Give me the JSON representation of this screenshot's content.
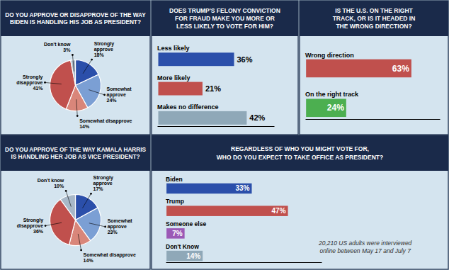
{
  "chart_data": [
    {
      "type": "pie",
      "title": "DO YOU APPROVE OR DISAPPROVE OF THE WAY\nBIDEN IS HANDLING HIS JOB AS PRESIDENT?",
      "categories": [
        "Strongly\napprove",
        "Somewhat\napprove",
        "Somewhat disapprove",
        "Strongly\ndisapprove",
        "Don't know"
      ],
      "values": [
        18,
        24,
        14,
        41,
        3
      ],
      "value_labels": [
        "18%",
        "24%",
        "14%",
        "41%",
        "3%"
      ],
      "colors": [
        "#2b4faa",
        "#7b9fd4",
        "#d9867a",
        "#c0504d",
        "#a8b8c8"
      ],
      "data_labels": true
    },
    {
      "type": "pie",
      "title": "DO YOU APPROVE OF THE WAY KAMALA HARRIS\nIS HANDLING HER JOB AS VICE PRESIDENT?",
      "categories": [
        "Strongly\napprove",
        "Somewhat\napprove",
        "Somewhat disapprove",
        "Strongly\ndisapprove",
        "Don't know"
      ],
      "values": [
        17,
        23,
        14,
        36,
        10
      ],
      "value_labels": [
        "17%",
        "23%",
        "14%",
        "36%",
        "10%"
      ],
      "colors": [
        "#2b4faa",
        "#7b9fd4",
        "#d9867a",
        "#c0504d",
        "#a8b8c8"
      ],
      "data_labels": true
    },
    {
      "type": "bar",
      "orientation": "horizontal",
      "title": "DOES TRUMP'S FELONY CONVICTION\nFOR FRAUD MAKE YOU MORE OR\nLESS LIKELY TO VOTE FOR HIM?",
      "categories": [
        "Less likely",
        "More likely",
        "Makes no difference"
      ],
      "values": [
        36,
        21,
        42
      ],
      "value_labels": [
        "36%",
        "21%",
        "42%"
      ],
      "colors": [
        "#2b4faa",
        "#c0504d",
        "#8fa8b8"
      ],
      "xlim": [
        -0.5,
        55
      ],
      "tick_labels": false,
      "data_labels": true
    },
    {
      "type": "bar",
      "orientation": "horizontal",
      "title": "IS THE U.S. ON THE RIGHT\nTRACK, OR IS IT HEADED IN\nTHE WRONG DIRECTION?",
      "categories": [
        "Wrong direction",
        "On the right track"
      ],
      "values": [
        63,
        24
      ],
      "value_labels": [
        "63%",
        "24%"
      ],
      "colors": [
        "#c0504d",
        "#4caf50"
      ],
      "xlim": [
        -0.5,
        80
      ],
      "tick_labels": false,
      "data_labels": true
    },
    {
      "type": "bar",
      "orientation": "horizontal",
      "title": "REGARDLESS OF WHO YOU MIGHT VOTE FOR,\nWHO DO YOU EXPECT TO TAKE OFFICE AS PRESIDENT?",
      "categories": [
        "Biden",
        "Trump",
        "Someone else",
        "Don't Know"
      ],
      "values": [
        33,
        47,
        7,
        14
      ],
      "value_labels": [
        "33%",
        "47%",
        "7%",
        "14%"
      ],
      "colors": [
        "#2b4faa",
        "#c0504d",
        "#9b59b6",
        "#8fa8b8"
      ],
      "xlim": [
        -0.3,
        60
      ],
      "tick_labels": false,
      "data_labels": true,
      "annotations": [
        "20,210 US adults were interviewed\nonline between May 17 and July 7"
      ]
    }
  ]
}
